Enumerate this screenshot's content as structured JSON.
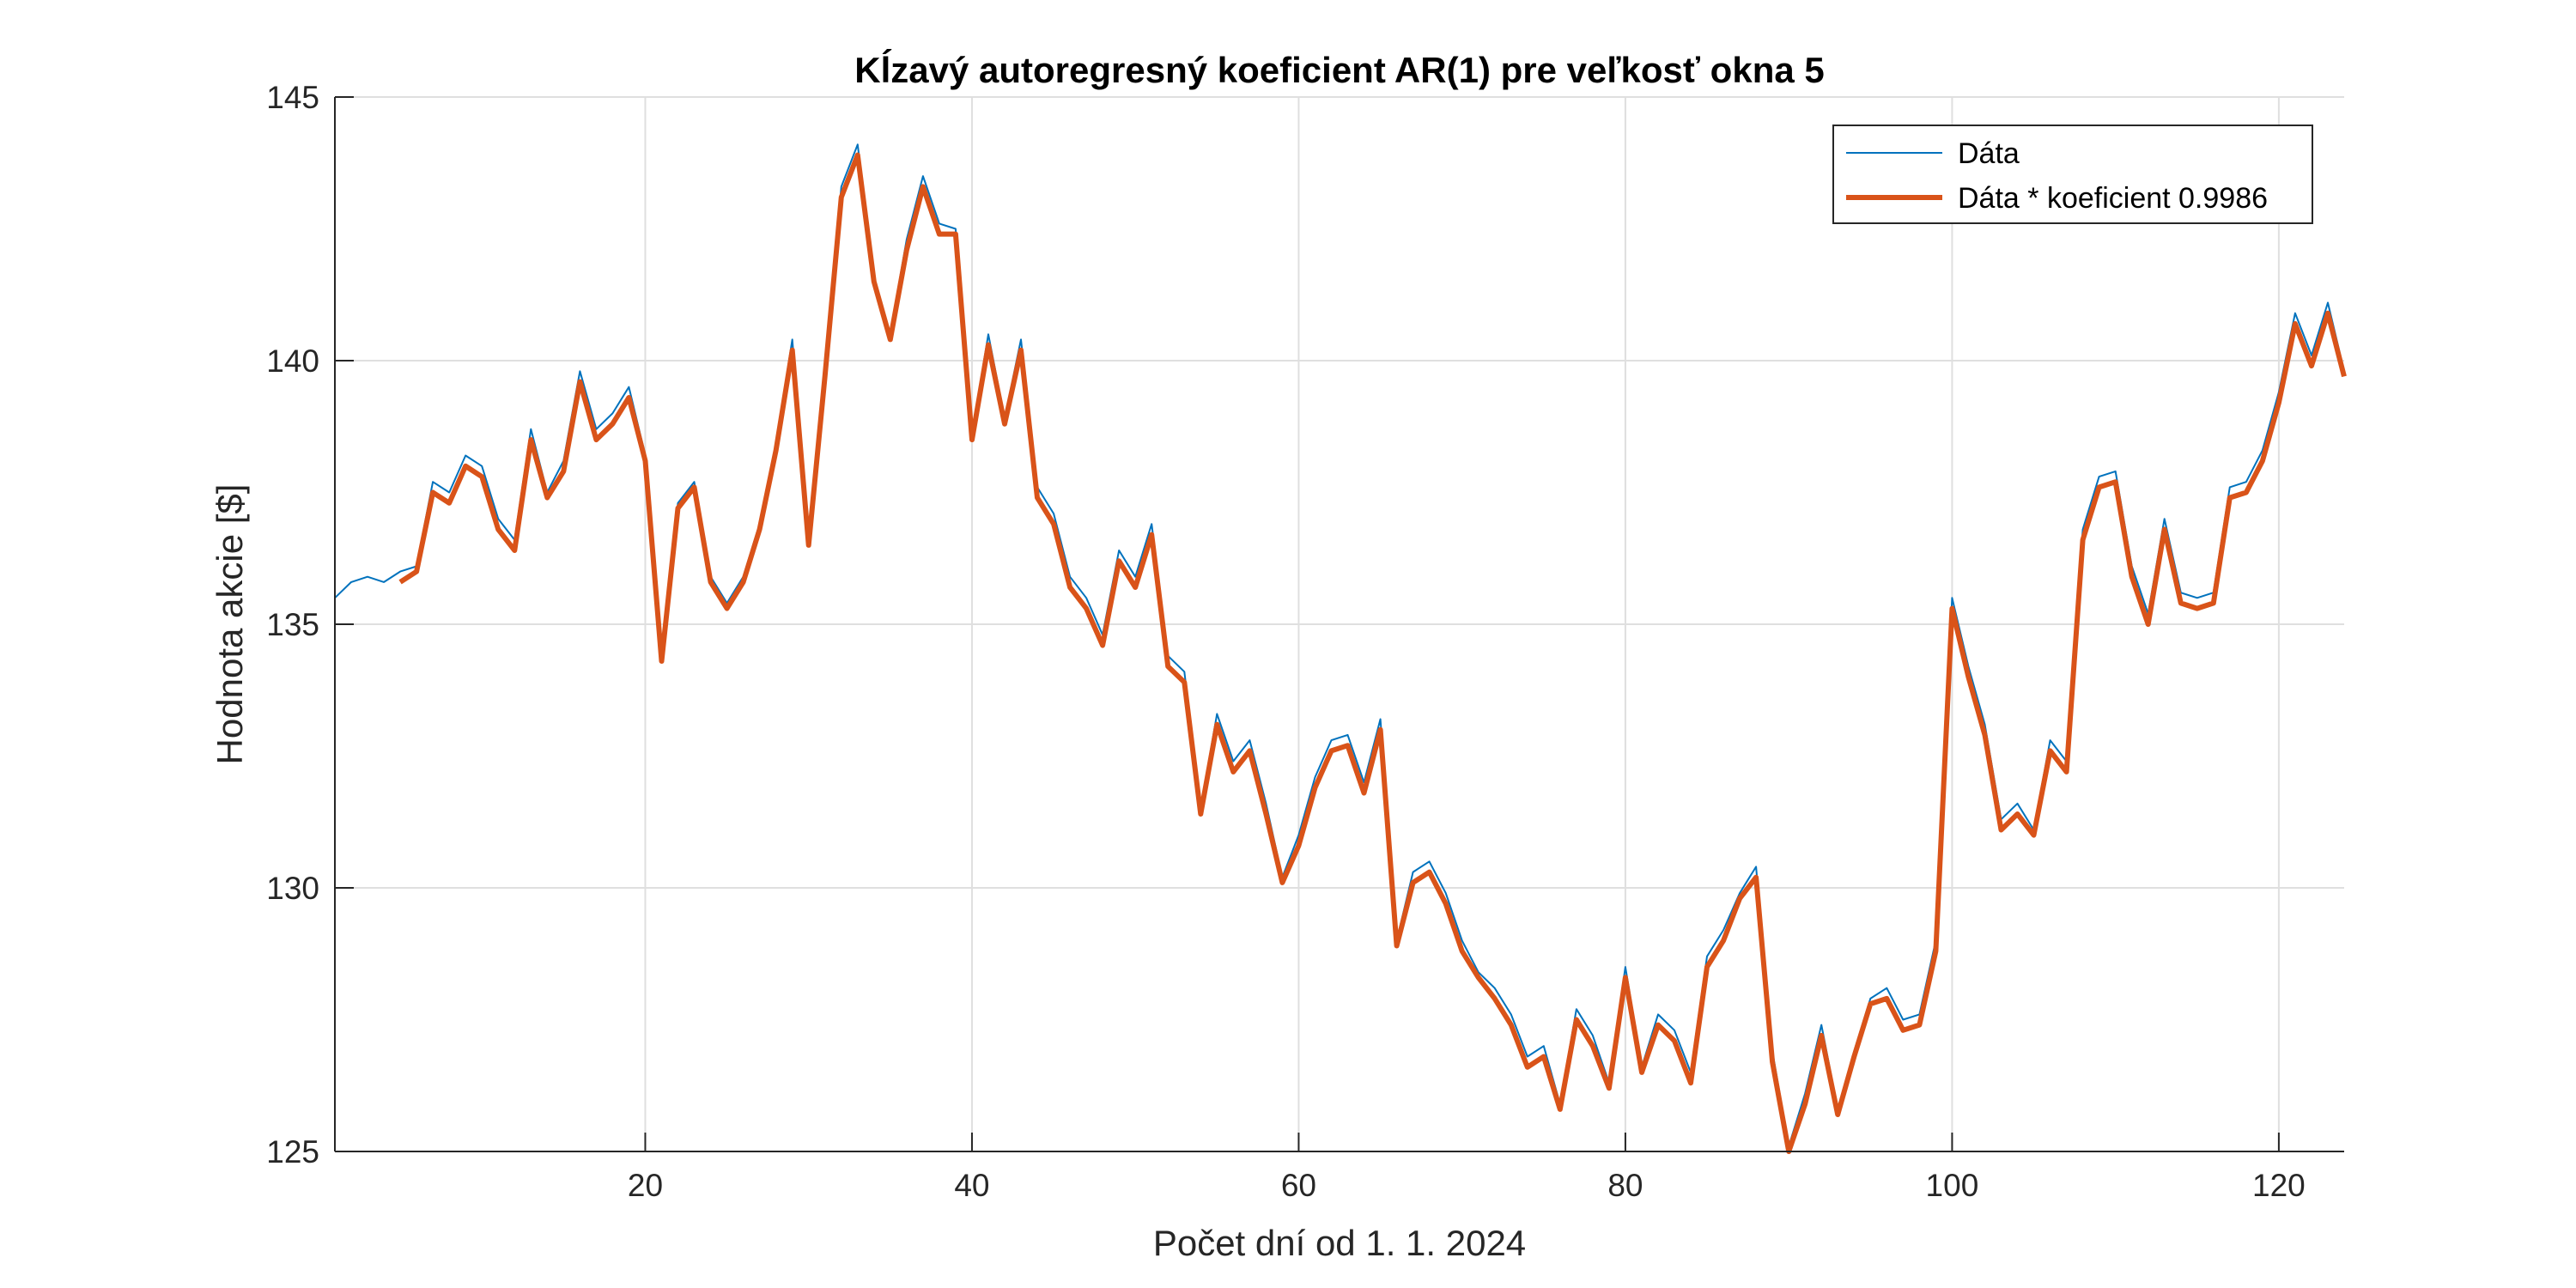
{
  "chart_data": {
    "type": "line",
    "title": "Kĺzavý autoregresný koeficient AR(1) pre veľkosť okna 5",
    "xlabel": "Počet dní od 1. 1. 2024",
    "ylabel": "Hodnota akcie [$]",
    "xlim": [
      1,
      124
    ],
    "ylim": [
      125,
      145
    ],
    "xticks": [
      20,
      40,
      60,
      80,
      100,
      120
    ],
    "yticks": [
      125,
      130,
      135,
      140,
      145
    ],
    "grid": true,
    "legend_position": "top-right",
    "x_start": 1,
    "series": [
      {
        "name": "Dáta",
        "color": "#0072BD",
        "line_width": "thin",
        "values": [
          135.5,
          135.8,
          135.9,
          135.8,
          136.0,
          136.1,
          137.7,
          137.5,
          138.2,
          138.0,
          137.0,
          136.6,
          138.7,
          137.5,
          138.1,
          139.8,
          138.7,
          139.0,
          139.5,
          138.2,
          134.4,
          137.3,
          137.7,
          135.9,
          135.4,
          135.9,
          136.9,
          138.4,
          140.4,
          136.6,
          139.8,
          143.3,
          144.1,
          141.6,
          140.5,
          142.3,
          143.5,
          142.6,
          142.5,
          138.6,
          140.5,
          138.9,
          140.4,
          137.6,
          137.1,
          135.9,
          135.5,
          134.8,
          136.4,
          135.9,
          136.9,
          134.4,
          134.1,
          131.5,
          133.3,
          132.4,
          132.8,
          131.6,
          130.2,
          131.0,
          132.1,
          132.8,
          132.9,
          132.0,
          133.2,
          129.0,
          130.3,
          130.5,
          129.9,
          129.0,
          128.4,
          128.1,
          127.6,
          126.8,
          127.0,
          125.9,
          127.7,
          127.2,
          126.3,
          128.5,
          126.6,
          127.6,
          127.3,
          126.5,
          128.7,
          129.2,
          129.9,
          130.4,
          126.9,
          125.1,
          126.1,
          127.4,
          125.8,
          126.9,
          127.9,
          128.1,
          127.5,
          127.6,
          129.0,
          135.5,
          134.2,
          133.1,
          131.3,
          131.6,
          131.1,
          132.8,
          132.4,
          136.8,
          137.8,
          137.9,
          136.1,
          135.2,
          137.0,
          135.6,
          135.5,
          135.6,
          137.6,
          137.7,
          138.3,
          139.4,
          140.9,
          140.1,
          141.1,
          139.8
        ]
      },
      {
        "name": "Dáta * koeficient 0.9986",
        "color": "#D95319",
        "line_width": "thick",
        "x_start": 5,
        "values": [
          135.8,
          136.0,
          137.5,
          137.3,
          138.0,
          137.8,
          136.8,
          136.4,
          138.5,
          137.4,
          137.9,
          139.6,
          138.5,
          138.8,
          139.3,
          138.1,
          134.3,
          137.2,
          137.6,
          135.8,
          135.3,
          135.8,
          136.8,
          138.3,
          140.2,
          136.5,
          139.7,
          143.1,
          143.9,
          141.5,
          140.4,
          142.1,
          143.3,
          142.4,
          142.4,
          138.5,
          140.3,
          138.8,
          140.2,
          137.4,
          136.9,
          135.7,
          135.3,
          134.6,
          136.2,
          135.7,
          136.7,
          134.2,
          133.9,
          131.4,
          133.1,
          132.2,
          132.6,
          131.4,
          130.1,
          130.8,
          131.9,
          132.6,
          132.7,
          131.8,
          133.0,
          128.9,
          130.1,
          130.3,
          129.7,
          128.8,
          128.3,
          127.9,
          127.4,
          126.6,
          126.8,
          125.8,
          127.5,
          127.0,
          126.2,
          128.3,
          126.5,
          127.4,
          127.1,
          126.3,
          128.5,
          129.0,
          129.8,
          130.2,
          126.7,
          125.0,
          125.9,
          127.2,
          125.7,
          126.8,
          127.8,
          127.9,
          127.3,
          127.4,
          128.8,
          135.3,
          134.0,
          132.9,
          131.1,
          131.4,
          131.0,
          132.6,
          132.2,
          136.6,
          137.6,
          137.7,
          135.9,
          135.0,
          136.8,
          135.4,
          135.3,
          135.4,
          137.4,
          137.5,
          138.1,
          139.2,
          140.7,
          139.9,
          140.9,
          139.7
        ]
      }
    ]
  }
}
